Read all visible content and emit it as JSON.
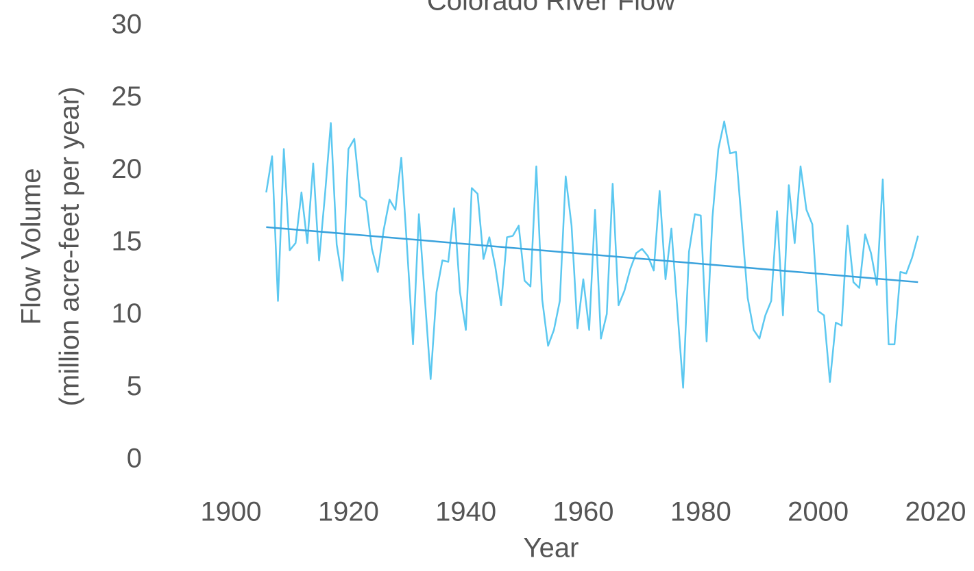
{
  "chart_data": {
    "type": "line",
    "title": "Colorado River Flow",
    "xlabel": "Year",
    "ylabel": [
      "Flow Volume",
      "(million acre-feet per year)"
    ],
    "xlim": [
      1900,
      2020
    ],
    "xticks": [
      1900,
      1920,
      1940,
      1960,
      1980,
      2000,
      2020
    ],
    "ylim": [
      0,
      30
    ],
    "yticks": [
      0,
      5,
      10,
      15,
      20,
      25,
      30
    ],
    "grid": false,
    "series": [
      {
        "color": "#5cc8f0",
        "width": 2.5,
        "x": [
          1906,
          1907,
          1908,
          1909,
          1910,
          1911,
          1912,
          1913,
          1914,
          1915,
          1916,
          1917,
          1918,
          1919,
          1920,
          1921,
          1922,
          1923,
          1924,
          1925,
          1926,
          1927,
          1928,
          1929,
          1930,
          1931,
          1932,
          1933,
          1934,
          1935,
          1936,
          1937,
          1938,
          1939,
          1940,
          1941,
          1942,
          1943,
          1944,
          1945,
          1946,
          1947,
          1948,
          1949,
          1950,
          1951,
          1952,
          1953,
          1954,
          1955,
          1956,
          1957,
          1958,
          1959,
          1960,
          1961,
          1962,
          1963,
          1964,
          1965,
          1966,
          1967,
          1968,
          1969,
          1970,
          1971,
          1972,
          1973,
          1974,
          1975,
          1976,
          1977,
          1978,
          1979,
          1980,
          1981,
          1982,
          1983,
          1984,
          1985,
          1986,
          1987,
          1988,
          1989,
          1990,
          1991,
          1992,
          1993,
          1994,
          1995,
          1996,
          1997,
          1998,
          1999,
          2000,
          2001,
          2002,
          2003,
          2004,
          2005,
          2006,
          2007,
          2008,
          2009,
          2010,
          2011,
          2012,
          2013,
          2014,
          2015,
          2016,
          2017
        ],
        "values": [
          18.5,
          21.0,
          11.0,
          21.5,
          14.5,
          15.0,
          18.5,
          15.0,
          20.5,
          13.8,
          18.3,
          23.3,
          14.9,
          12.4,
          21.5,
          22.2,
          18.2,
          17.9,
          14.6,
          13.0,
          15.9,
          18.0,
          17.3,
          20.9,
          14.6,
          8.0,
          17.0,
          11.3,
          5.6,
          11.6,
          13.8,
          13.7,
          17.4,
          11.6,
          9.0,
          18.8,
          18.4,
          13.9,
          15.4,
          13.4,
          10.7,
          15.4,
          15.5,
          16.2,
          12.4,
          12.0,
          20.3,
          11.1,
          7.9,
          9.0,
          11.0,
          19.6,
          16.2,
          9.1,
          12.5,
          9.0,
          17.3,
          8.4,
          10.1,
          19.1,
          10.7,
          11.7,
          13.2,
          14.3,
          14.6,
          14.1,
          13.1,
          18.6,
          12.5,
          16.0,
          10.5,
          5.0,
          14.4,
          17.0,
          16.9,
          8.2,
          16.8,
          21.5,
          23.4,
          21.2,
          21.3,
          16.3,
          11.2,
          9.0,
          8.4,
          10.0,
          11.0,
          17.2,
          10.0,
          19.0,
          15.0,
          20.3,
          17.3,
          16.3,
          10.3,
          10.0,
          5.4,
          9.5,
          9.3,
          16.2,
          12.3,
          11.9,
          15.6,
          14.3,
          12.1,
          19.4,
          8.0,
          8.0,
          13.0,
          12.9,
          14.0,
          15.5
        ]
      },
      {
        "color": "#3aa2dc",
        "width": 2.5,
        "x": [
          1906,
          2017
        ],
        "values": [
          16.1,
          12.3
        ]
      }
    ]
  }
}
